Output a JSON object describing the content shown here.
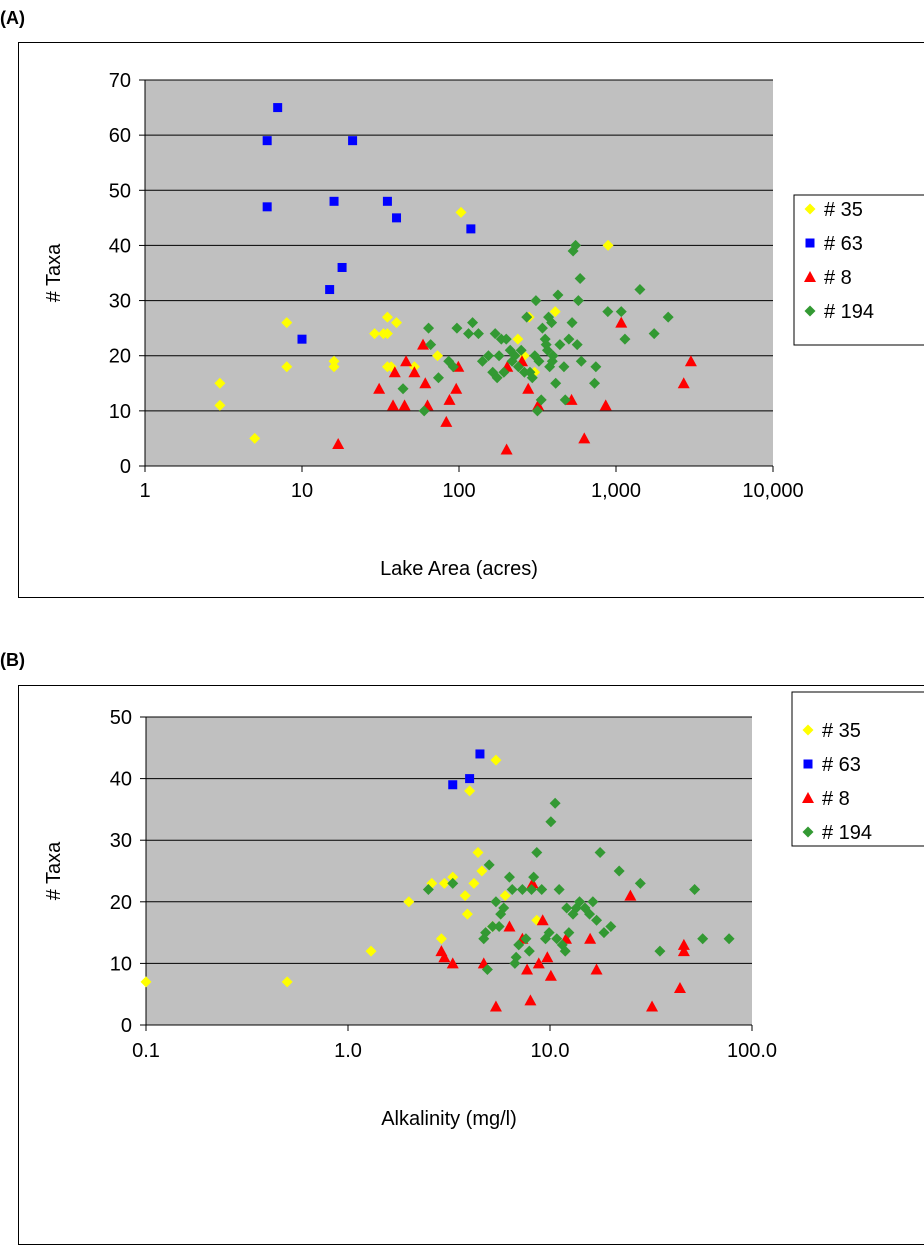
{
  "chart_data": [
    {
      "panel_label": "(A)",
      "type": "scatter",
      "xlabel": "Lake Area (acres)",
      "ylabel": "# Taxa",
      "x_scale": "log",
      "xlim": [
        1,
        10000
      ],
      "ylim": [
        0,
        70
      ],
      "x_ticks": [
        1,
        10,
        100,
        1000,
        10000
      ],
      "x_tick_labels": [
        "1",
        "10",
        "100",
        "1,000",
        "10,000"
      ],
      "y_ticks": [
        0,
        10,
        20,
        30,
        40,
        50,
        60,
        70
      ],
      "grid": true,
      "plot_background": "#C0C0C0",
      "legend_position": "right",
      "series": [
        {
          "name": "# 35",
          "marker": "diamond",
          "color": "#FFFF00",
          "points": [
            [
              3,
              15
            ],
            [
              3,
              11
            ],
            [
              5,
              5
            ],
            [
              8,
              26
            ],
            [
              8,
              18
            ],
            [
              16,
              19
            ],
            [
              16,
              18
            ],
            [
              29,
              24
            ],
            [
              33,
              24
            ],
            [
              35,
              27
            ],
            [
              35,
              24
            ],
            [
              35,
              18
            ],
            [
              37,
              18
            ],
            [
              40,
              26
            ],
            [
              52,
              18
            ],
            [
              73,
              20
            ],
            [
              103,
              46
            ],
            [
              237,
              23
            ],
            [
              260,
              20
            ],
            [
              280,
              27
            ],
            [
              303,
              17
            ],
            [
              410,
              28
            ],
            [
              890,
              40
            ]
          ]
        },
        {
          "name": "# 63",
          "marker": "square",
          "color": "#0000FF",
          "points": [
            [
              6,
              59
            ],
            [
              6,
              47
            ],
            [
              7,
              65
            ],
            [
              10,
              23
            ],
            [
              15,
              32
            ],
            [
              16,
              48
            ],
            [
              18,
              36
            ],
            [
              21,
              59
            ],
            [
              35,
              48
            ],
            [
              40,
              45
            ],
            [
              119,
              43
            ]
          ]
        },
        {
          "name": "# 8",
          "marker": "triangle",
          "color": "#FF0000",
          "points": [
            [
              17,
              4
            ],
            [
              31,
              14
            ],
            [
              38,
              11
            ],
            [
              39,
              17
            ],
            [
              45,
              11
            ],
            [
              46,
              19
            ],
            [
              52,
              17
            ],
            [
              59,
              22
            ],
            [
              61,
              15
            ],
            [
              63,
              11
            ],
            [
              83,
              8
            ],
            [
              87,
              12
            ],
            [
              96,
              14
            ],
            [
              99,
              18
            ],
            [
              201,
              3
            ],
            [
              203,
              18
            ],
            [
              252,
              19
            ],
            [
              276,
              14
            ],
            [
              319,
              11
            ],
            [
              521,
              12
            ],
            [
              628,
              5
            ],
            [
              860,
              11
            ],
            [
              1080,
              26
            ],
            [
              2700,
              15
            ],
            [
              3000,
              19
            ]
          ]
        },
        {
          "name": "# 194",
          "marker": "diamond",
          "color": "#339933",
          "points": [
            [
              44,
              14
            ],
            [
              60,
              10
            ],
            [
              64,
              25
            ],
            [
              66,
              22
            ],
            [
              74,
              16
            ],
            [
              86,
              19
            ],
            [
              92,
              18
            ],
            [
              97,
              25
            ],
            [
              115,
              24
            ],
            [
              122,
              26
            ],
            [
              133,
              24
            ],
            [
              141,
              19
            ],
            [
              154,
              20
            ],
            [
              164,
              17
            ],
            [
              170,
              24
            ],
            [
              175,
              16
            ],
            [
              180,
              20
            ],
            [
              186,
              23
            ],
            [
              193,
              17
            ],
            [
              200,
              23
            ],
            [
              212,
              21
            ],
            [
              218,
              19
            ],
            [
              227,
              20
            ],
            [
              239,
              18
            ],
            [
              249,
              21
            ],
            [
              261,
              17
            ],
            [
              270,
              27
            ],
            [
              283,
              17
            ],
            [
              293,
              16
            ],
            [
              304,
              20
            ],
            [
              309,
              30
            ],
            [
              316,
              10
            ],
            [
              323,
              19
            ],
            [
              334,
              12
            ],
            [
              340,
              25
            ],
            [
              354,
              23
            ],
            [
              359,
              22
            ],
            [
              366,
              21
            ],
            [
              372,
              27
            ],
            [
              378,
              18
            ],
            [
              389,
              26
            ],
            [
              393,
              19
            ],
            [
              397,
              20
            ],
            [
              413,
              15
            ],
            [
              427,
              31
            ],
            [
              439,
              22
            ],
            [
              466,
              18
            ],
            [
              475,
              12
            ],
            [
              501,
              23
            ],
            [
              525,
              26
            ],
            [
              533,
              39
            ],
            [
              553,
              40
            ],
            [
              566,
              22
            ],
            [
              576,
              30
            ],
            [
              591,
              34
            ],
            [
              601,
              19
            ],
            [
              730,
              15
            ],
            [
              744,
              18
            ],
            [
              887,
              28
            ],
            [
              1080,
              28
            ],
            [
              1140,
              23
            ],
            [
              1420,
              32
            ],
            [
              1750,
              24
            ],
            [
              2150,
              27
            ]
          ]
        }
      ]
    },
    {
      "panel_label": "(B)",
      "type": "scatter",
      "xlabel": "Alkalinity (mg/l)",
      "ylabel": "# Taxa",
      "x_scale": "log",
      "xlim": [
        0.1,
        100
      ],
      "ylim": [
        0,
        50
      ],
      "x_ticks": [
        0.1,
        1,
        10,
        100
      ],
      "x_tick_labels": [
        "0.1",
        "1.0",
        "10.0",
        "100.0"
      ],
      "y_ticks": [
        0,
        10,
        20,
        30,
        40,
        50
      ],
      "grid": true,
      "plot_background": "#C0C0C0",
      "legend_position": "right",
      "series": [
        {
          "name": "# 35",
          "marker": "diamond",
          "color": "#FFFF00",
          "points": [
            [
              0.1,
              7
            ],
            [
              0.5,
              7
            ],
            [
              1.3,
              12
            ],
            [
              2.0,
              20
            ],
            [
              2.6,
              23
            ],
            [
              2.9,
              14
            ],
            [
              3.0,
              23
            ],
            [
              3.3,
              24
            ],
            [
              3.8,
              21
            ],
            [
              3.9,
              18
            ],
            [
              4.0,
              38
            ],
            [
              4.2,
              23
            ],
            [
              4.4,
              28
            ],
            [
              4.6,
              25
            ],
            [
              5.2,
              16
            ],
            [
              5.4,
              43
            ],
            [
              6.0,
              21
            ],
            [
              8.6,
              17
            ]
          ]
        },
        {
          "name": "# 63",
          "marker": "square",
          "color": "#0000FF",
          "points": [
            [
              3.3,
              39
            ],
            [
              4.0,
              40
            ],
            [
              4.5,
              44
            ]
          ]
        },
        {
          "name": "# 8",
          "marker": "triangle",
          "color": "#FF0000",
          "points": [
            [
              2.9,
              12
            ],
            [
              3.0,
              11
            ],
            [
              3.3,
              10
            ],
            [
              4.7,
              10
            ],
            [
              5.4,
              3
            ],
            [
              6.3,
              16
            ],
            [
              7.3,
              14
            ],
            [
              7.7,
              9
            ],
            [
              8.0,
              4
            ],
            [
              8.2,
              23
            ],
            [
              8.8,
              10
            ],
            [
              9.2,
              17
            ],
            [
              9.7,
              11
            ],
            [
              10.1,
              8
            ],
            [
              12.0,
              14
            ],
            [
              15.8,
              14
            ],
            [
              17.0,
              9
            ],
            [
              25.0,
              21
            ],
            [
              32.0,
              3
            ],
            [
              44.0,
              6
            ],
            [
              46.0,
              12
            ],
            [
              46.0,
              13
            ]
          ]
        },
        {
          "name": "# 194",
          "marker": "diamond",
          "color": "#339933",
          "points": [
            [
              2.5,
              22
            ],
            [
              3.3,
              23
            ],
            [
              4.7,
              14
            ],
            [
              4.8,
              15
            ],
            [
              4.9,
              9
            ],
            [
              5.0,
              26
            ],
            [
              5.2,
              16
            ],
            [
              5.4,
              20
            ],
            [
              5.6,
              16
            ],
            [
              5.7,
              18
            ],
            [
              5.9,
              19
            ],
            [
              6.3,
              24
            ],
            [
              6.5,
              22
            ],
            [
              6.7,
              10
            ],
            [
              6.8,
              11
            ],
            [
              7.0,
              13
            ],
            [
              7.3,
              22
            ],
            [
              7.6,
              14
            ],
            [
              7.9,
              12
            ],
            [
              8.1,
              22
            ],
            [
              8.3,
              24
            ],
            [
              8.6,
              28
            ],
            [
              9.1,
              22
            ],
            [
              9.5,
              14
            ],
            [
              9.9,
              15
            ],
            [
              10.1,
              33
            ],
            [
              10.6,
              36
            ],
            [
              10.8,
              14
            ],
            [
              11.1,
              22
            ],
            [
              11.5,
              13
            ],
            [
              11.9,
              12
            ],
            [
              12.1,
              19
            ],
            [
              12.4,
              15
            ],
            [
              13.0,
              18
            ],
            [
              13.5,
              19
            ],
            [
              14.0,
              20
            ],
            [
              14.9,
              19
            ],
            [
              15.7,
              18
            ],
            [
              16.3,
              20
            ],
            [
              17.0,
              17
            ],
            [
              17.7,
              28
            ],
            [
              18.5,
              15
            ],
            [
              20.0,
              16
            ],
            [
              22.0,
              25
            ],
            [
              28.0,
              23
            ],
            [
              35.0,
              12
            ],
            [
              52.0,
              22
            ],
            [
              57.0,
              14
            ],
            [
              77.0,
              14
            ]
          ]
        }
      ]
    }
  ]
}
